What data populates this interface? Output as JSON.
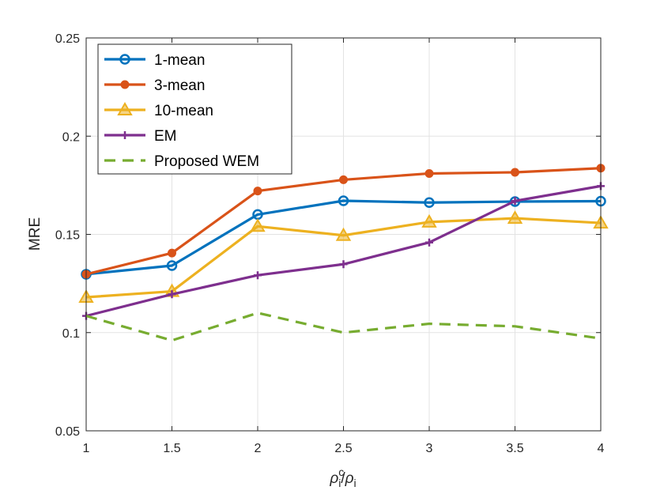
{
  "chart_data": {
    "type": "line",
    "title": "",
    "ylabel": "MRE",
    "xlabel": {
      "base": "ρ",
      "sub": "i",
      "sup": "c",
      "sep": "/",
      "base2": "ρ",
      "sub2": "i"
    },
    "x": [
      1,
      1.5,
      2,
      2.5,
      3,
      3.5,
      4
    ],
    "xlim": [
      1,
      4
    ],
    "ylim": [
      0.05,
      0.25
    ],
    "xticks": [
      1,
      1.5,
      2,
      2.5,
      3,
      3.5,
      4
    ],
    "xtick_labels": [
      "1",
      "1.5",
      "2",
      "2.5",
      "3",
      "3.5",
      "4"
    ],
    "yticks": [
      0.05,
      0.1,
      0.15,
      0.2,
      0.25
    ],
    "ytick_labels": [
      "0.05",
      "0.1",
      "0.15",
      "0.2",
      "0.25"
    ],
    "grid": true,
    "legend_position": "top-left",
    "series": [
      {
        "name": "1-mean",
        "color": "#0072BD",
        "marker": "circle",
        "dash": "solid",
        "values": [
          0.1297,
          0.1341,
          0.1601,
          0.1671,
          0.1662,
          0.1667,
          0.1669
        ]
      },
      {
        "name": "3-mean",
        "color": "#D95319",
        "marker": "dot",
        "dash": "solid",
        "values": [
          0.1297,
          0.1405,
          0.1721,
          0.1778,
          0.181,
          0.1816,
          0.1837
        ]
      },
      {
        "name": "10-mean",
        "color": "#EDB120",
        "marker": "triangle",
        "dash": "solid",
        "values": [
          0.118,
          0.121,
          0.1541,
          0.1495,
          0.1563,
          0.1582,
          0.1558
        ]
      },
      {
        "name": "EM",
        "color": "#7E2F8E",
        "marker": "plus",
        "dash": "solid",
        "values": [
          0.1085,
          0.1195,
          0.1292,
          0.1348,
          0.1459,
          0.167,
          0.1746
        ]
      },
      {
        "name": "Proposed WEM",
        "color": "#77AC30",
        "marker": "none",
        "dash": "dashed",
        "values": [
          0.1085,
          0.096,
          0.11,
          0.1,
          0.1045,
          0.1032,
          0.097
        ]
      }
    ]
  }
}
